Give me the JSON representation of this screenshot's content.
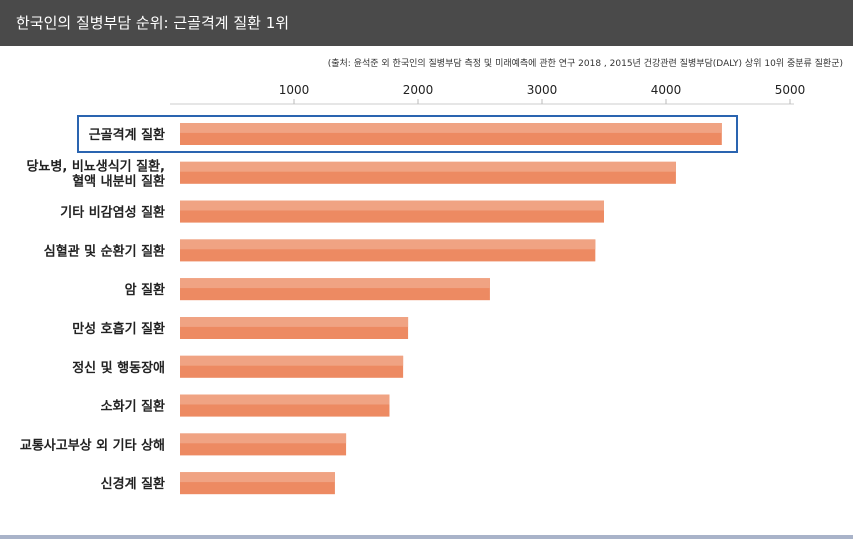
{
  "header": {
    "title": "한국인의 질병부담 순위: 근골격계 질환 1위"
  },
  "source": {
    "text": "(출처: 윤석준 외 한국인의 질병부담 측정 및 미래예측에 관한 연구 2018 , 2015년 건강관련 질병부담(DALY) 상위 10위 중분류 질환군)"
  },
  "colors": {
    "bar": "#ed8a62",
    "bar_light": "#f0a383",
    "highlight_border": "#2a64b0"
  },
  "chart_data": {
    "type": "bar",
    "orientation": "horizontal",
    "title": "",
    "xlabel": "",
    "ylabel": "",
    "xlim": [
      0,
      5000
    ],
    "ticks": [
      "1000",
      "2000",
      "3000",
      "4000",
      "5000"
    ],
    "grid": false,
    "legend": "none",
    "highlighted_category_index": 0,
    "categories": [
      [
        "근골격계 질환"
      ],
      [
        "당뇨병, 비뇨생식기 질환,",
        "혈액 내분비 질환"
      ],
      [
        "기타 비감염성 질환"
      ],
      [
        "심혈관 및 순환기 질환"
      ],
      [
        "암 질환"
      ],
      [
        "만성 호흡기 질환"
      ],
      [
        "정신 및 행동장애"
      ],
      [
        "소화기 질환"
      ],
      [
        "교통사고부상 외 기타 상해"
      ],
      [
        "신경계 질환"
      ]
    ],
    "values": [
      4450,
      4080,
      3500,
      3430,
      2580,
      1920,
      1880,
      1770,
      1420,
      1330
    ]
  }
}
